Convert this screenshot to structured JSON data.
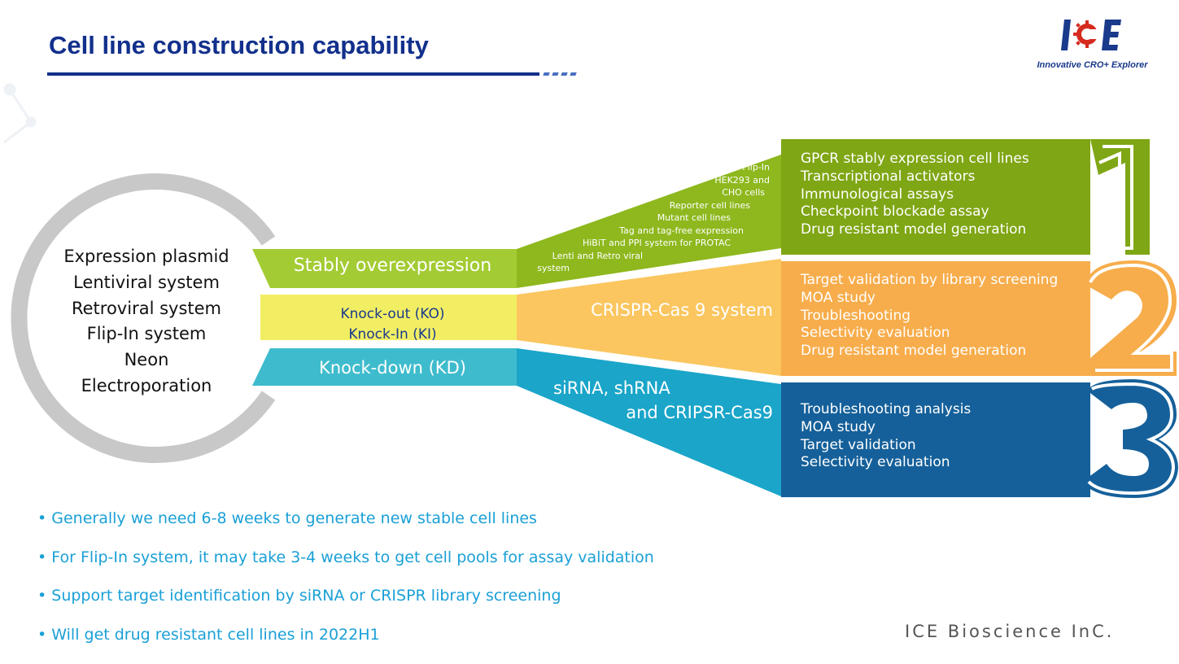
{
  "title": "Cell line construction capability",
  "logo": {
    "brand": "ICE",
    "tagline": "Innovative CRO+ Explorer"
  },
  "circle_items": [
    "Expression plasmid",
    "Lentiviral system",
    "Retroviral system",
    "Flip-In system",
    "Neon",
    "Electroporation"
  ],
  "bands": {
    "stable": "Stably overexpression",
    "ko": "Knock-out (KO)",
    "ki": "Knock-In (KI)",
    "kd": "Knock-down (KD)"
  },
  "mid": {
    "crispr": "CRISPR-Cas 9 system",
    "sirna_1": "siRNA, shRNA",
    "sirna_2": "and CRIPSR-Cas9",
    "stable_details": [
      "Flip-In",
      "HEK293 and",
      "CHO cells",
      "Reporter cell lines",
      "Mutant cell lines",
      "Tag and tag-free expression",
      "HiBiT and PPI system for PROTAC",
      "Lenti and Retro viral",
      "system"
    ]
  },
  "boxes": [
    {
      "number": "1",
      "color": "#7fa614",
      "items": [
        "GPCR stably expression cell lines",
        "Transcriptional activators",
        "Immunological assays",
        "Checkpoint blockade assay",
        "Drug resistant model generation"
      ]
    },
    {
      "number": "2",
      "color": "#f7ad4c",
      "items": [
        "Target validation by library screening",
        "MOA study",
        "Troubleshooting",
        "Selectivity evaluation",
        "Drug resistant model generation"
      ]
    },
    {
      "number": "3",
      "color": "#15609a",
      "items": [
        "Troubleshooting analysis",
        "MOA study",
        "Target validation",
        "Selectivity evaluation"
      ]
    }
  ],
  "bullets": [
    "Generally we need 6-8 weeks to generate new stable cell lines",
    "For Flip-In system, it may take 3-4 weeks to get cell pools for assay validation",
    "Support target identification by siRNA or CRISPR library screening",
    "Will get drug resistant cell lines in 2022H1"
  ],
  "bullet_char": "•",
  "footer": "ICE Bioscience InC."
}
